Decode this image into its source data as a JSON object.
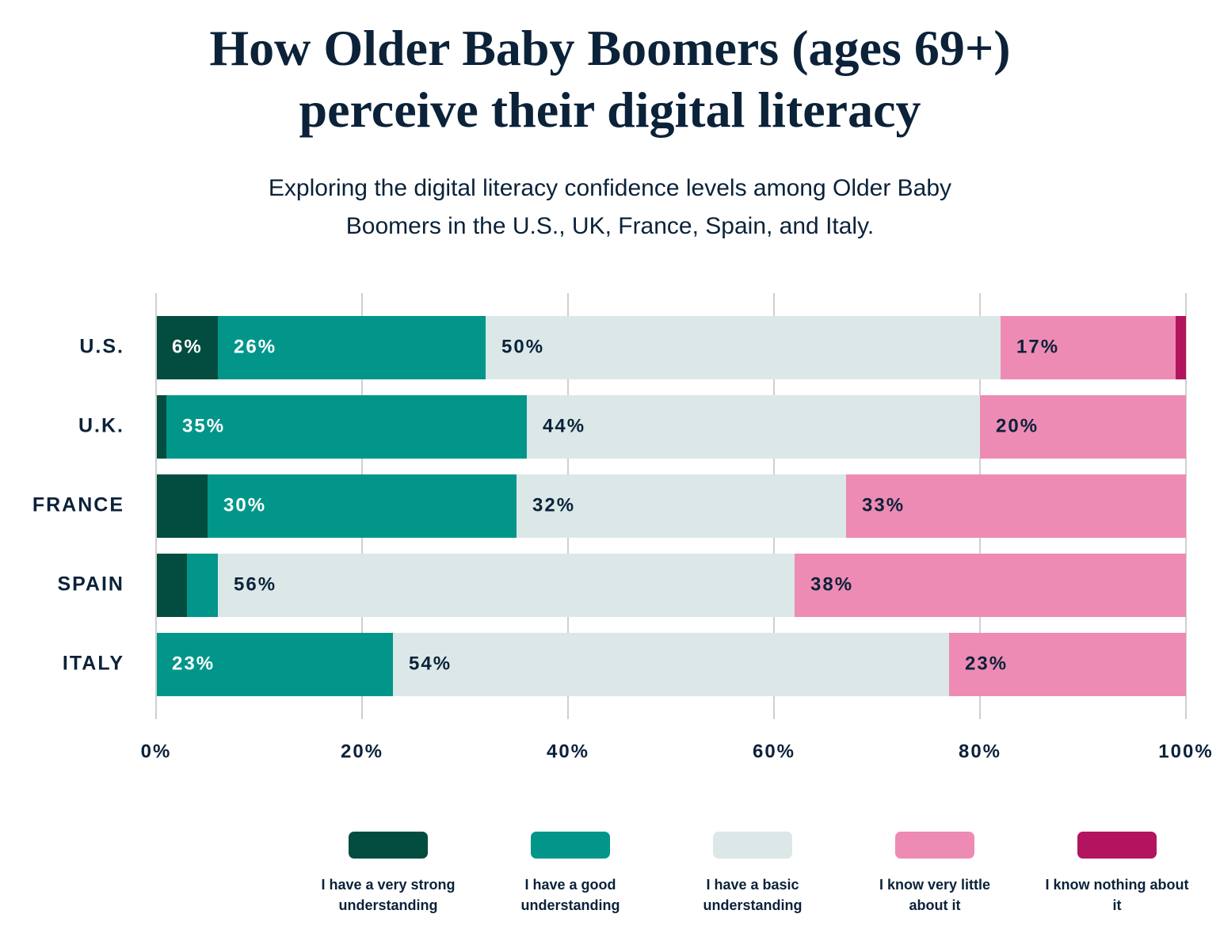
{
  "chart_data": {
    "type": "stacked-barh",
    "title": [
      "How Older Baby Boomers (ages 69+)",
      "perceive their digital literacy"
    ],
    "subtitle": [
      "Exploring the digital literacy confidence levels among Older Baby",
      "Boomers in the U.S., UK, France, Spain, and Italy."
    ],
    "categories": [
      "U.S.",
      "U.K.",
      "FRANCE",
      "SPAIN",
      "ITALY"
    ],
    "series": [
      {
        "name": "I have a very strong understanding",
        "color": "#024c40",
        "values": [
          6,
          1,
          5,
          3,
          0
        ],
        "value_labels": [
          "6%",
          null,
          null,
          null,
          null
        ]
      },
      {
        "name": "I have a good understanding",
        "color": "#02968a",
        "values": [
          26,
          35,
          30,
          3,
          23
        ],
        "value_labels": [
          "26%",
          "35%",
          "30%",
          null,
          "23%"
        ]
      },
      {
        "name": "I have a basic understanding",
        "color": "#dbe8e7",
        "values": [
          50,
          44,
          32,
          56,
          54
        ],
        "value_labels": [
          "50%",
          "44%",
          "32%",
          "56%",
          "54%"
        ]
      },
      {
        "name": "I know very little about it",
        "color": "#ed8bb5",
        "values": [
          17,
          20,
          33,
          38,
          23
        ],
        "value_labels": [
          "17%",
          "20%",
          "33%",
          "38%",
          "23%"
        ]
      },
      {
        "name": "I know nothing about it",
        "color": "#b3145f",
        "values": [
          1,
          0,
          0,
          0,
          0
        ]
      }
    ],
    "xlim": [
      0,
      100
    ],
    "xticks": [
      {
        "value": 0,
        "label": "0%"
      },
      {
        "value": 20,
        "label": "20%"
      },
      {
        "value": 40,
        "label": "40%"
      },
      {
        "value": 60,
        "label": "60%"
      },
      {
        "value": 80,
        "label": "80%"
      },
      {
        "value": 100,
        "label": "100%"
      }
    ],
    "grid": true,
    "legend": "bottom"
  }
}
